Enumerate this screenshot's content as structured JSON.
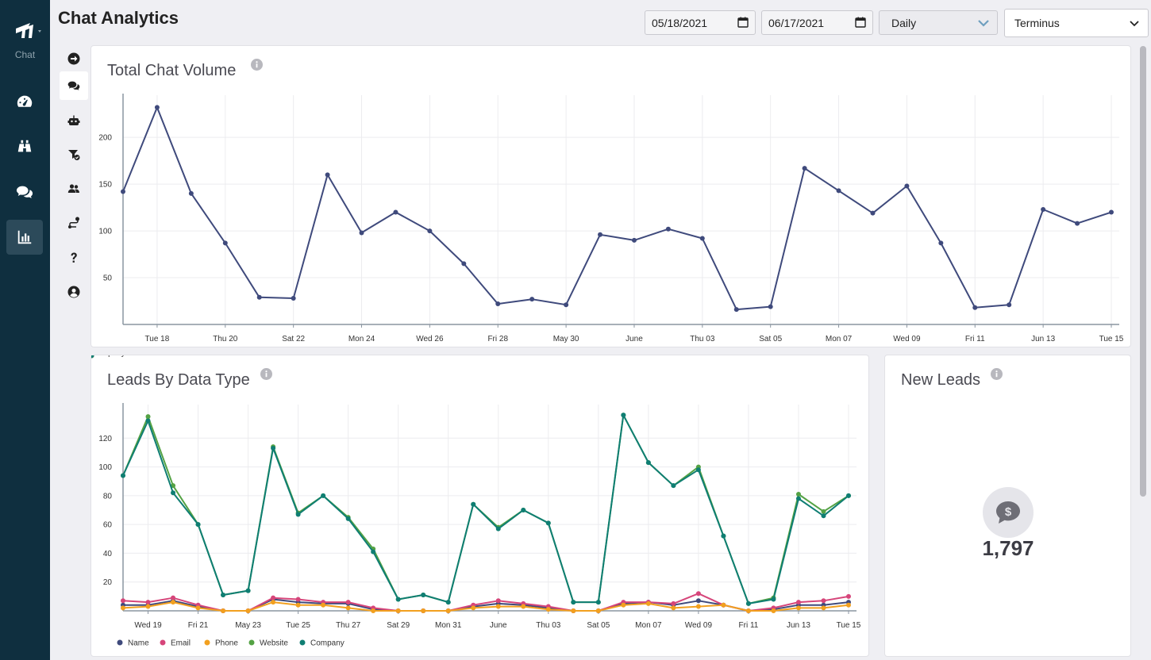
{
  "app": {
    "nav_label": "Chat"
  },
  "nav": [
    {
      "icon": "dashboard-gauge-icon",
      "active": false
    },
    {
      "icon": "binoculars-icon",
      "active": false
    },
    {
      "icon": "chat-bubbles-icon",
      "active": false
    },
    {
      "icon": "bar-chart-icon",
      "active": true
    }
  ],
  "subnav": [
    {
      "icon": "arrow-right-circle-icon",
      "active": false
    },
    {
      "icon": "chat-bubbles-icon",
      "active": true
    },
    {
      "icon": "robot-icon",
      "active": false
    },
    {
      "icon": "filter-check-icon",
      "active": false
    },
    {
      "icon": "users-icon",
      "active": false
    },
    {
      "icon": "route-icon",
      "active": false
    },
    {
      "icon": "question-icon",
      "active": false
    },
    {
      "icon": "user-circle-icon",
      "active": false
    }
  ],
  "header": {
    "title": "Chat Analytics",
    "start_date": "05/18/2021",
    "end_date": "06/17/2021",
    "interval": "Daily",
    "account": "Terminus"
  },
  "colors": {
    "accent": "#3f4a7c",
    "nav_bg": "#0f2f3f",
    "name": "#3f4a7c",
    "email": "#d6457a",
    "phone": "#f2a01f",
    "website": "#54a244",
    "company": "#0f7e73"
  },
  "cards": {
    "total_chat_volume": {
      "title": "Total Chat Volume"
    },
    "leads_by_data_type": {
      "title": "Leads By Data Type"
    },
    "new_leads": {
      "title": "New Leads",
      "value": "1,797",
      "icon": "dollar-chat-icon"
    }
  },
  "chart_data": [
    {
      "type": "line",
      "title": "Total Chat Volume",
      "x": [
        "May 18",
        "May 19",
        "May 20",
        "May 21",
        "May 22",
        "May 23",
        "May 24",
        "May 25",
        "May 26",
        "May 27",
        "May 28",
        "May 29",
        "May 30",
        "May 31",
        "Jun 01",
        "Jun 02",
        "Jun 03",
        "Jun 04",
        "Jun 05",
        "Jun 06",
        "Jun 07",
        "Jun 08",
        "Jun 09",
        "Jun 10",
        "Jun 11",
        "Jun 12",
        "Jun 13",
        "Jun 14",
        "Jun 15",
        "Jun 16"
      ],
      "tick_labels": [
        "Tue 18",
        "Thu 20",
        "Sat 22",
        "Mon 24",
        "Wed 26",
        "Fri 28",
        "May 30",
        "June",
        "Thu 03",
        "Sat 05",
        "Mon 07",
        "Wed 09",
        "Fri 11",
        "Jun 13",
        "Tue 15"
      ],
      "series": [
        {
          "values": [
            142,
            232,
            140,
            87,
            29,
            28,
            160,
            98,
            120,
            100,
            65,
            22,
            27,
            21,
            96,
            90,
            102,
            92,
            16,
            19,
            167,
            143,
            119,
            148,
            87,
            18,
            21,
            123,
            108,
            120
          ]
        }
      ],
      "y_ticks": [
        "50",
        "100",
        "150",
        "200"
      ],
      "ylim": [
        0,
        240
      ],
      "grid": true
    },
    {
      "type": "line",
      "title": "Leads By Data Type",
      "x": [
        "May 18",
        "May 19",
        "May 20",
        "May 21",
        "May 22",
        "May 23",
        "May 24",
        "May 25",
        "May 26",
        "May 27",
        "May 28",
        "May 29",
        "May 30",
        "May 31",
        "Jun 01",
        "Jun 02",
        "Jun 03",
        "Jun 04",
        "Jun 05",
        "Jun 06",
        "Jun 07",
        "Jun 08",
        "Jun 09",
        "Jun 10",
        "Jun 11",
        "Jun 12",
        "Jun 13",
        "Jun 14",
        "Jun 15",
        "Jun 16"
      ],
      "tick_labels": [
        "Wed 19",
        "Fri 21",
        "May 23",
        "Tue 25",
        "Thu 27",
        "Sat 29",
        "Mon 31",
        "June",
        "Thu 03",
        "Sat 05",
        "Mon 07",
        "Wed 09",
        "Fri 11",
        "Jun 13",
        "Tue 15"
      ],
      "series": [
        {
          "name": "Name",
          "values": [
            4,
            4,
            7,
            3,
            0,
            0,
            8,
            6,
            5,
            5,
            1,
            0,
            0,
            0,
            3,
            5,
            4,
            2,
            0,
            0,
            5,
            6,
            4,
            7,
            4,
            0,
            1,
            4,
            4,
            6
          ]
        },
        {
          "name": "Email",
          "values": [
            7,
            6,
            9,
            4,
            0,
            0,
            9,
            8,
            6,
            6,
            2,
            0,
            0,
            0,
            4,
            7,
            5,
            3,
            0,
            0,
            6,
            6,
            5,
            12,
            4,
            0,
            2,
            6,
            7,
            10
          ]
        },
        {
          "name": "Phone",
          "values": [
            2,
            3,
            6,
            2,
            0,
            0,
            6,
            4,
            4,
            2,
            0,
            0,
            0,
            0,
            2,
            3,
            3,
            1,
            0,
            0,
            4,
            5,
            2,
            3,
            4,
            0,
            0,
            2,
            2,
            4
          ]
        },
        {
          "name": "Website",
          "values": [
            94,
            135,
            87,
            60,
            11,
            14,
            114,
            68,
            80,
            65,
            43,
            8,
            11,
            6,
            74,
            58,
            70,
            61,
            6,
            6,
            136,
            103,
            87,
            100,
            52,
            5,
            9,
            81,
            69,
            80
          ]
        },
        {
          "name": "Company",
          "values": [
            94,
            132,
            82,
            60,
            11,
            14,
            113,
            67,
            80,
            64,
            41,
            8,
            11,
            6,
            74,
            57,
            70,
            61,
            6,
            6,
            136,
            103,
            87,
            98,
            52,
            5,
            8,
            78,
            66,
            80
          ]
        }
      ],
      "y_ticks": [
        "20",
        "40",
        "60",
        "80",
        "100",
        "120"
      ],
      "ylim": [
        0,
        140
      ],
      "legend": "bottom-left",
      "grid": true
    }
  ]
}
